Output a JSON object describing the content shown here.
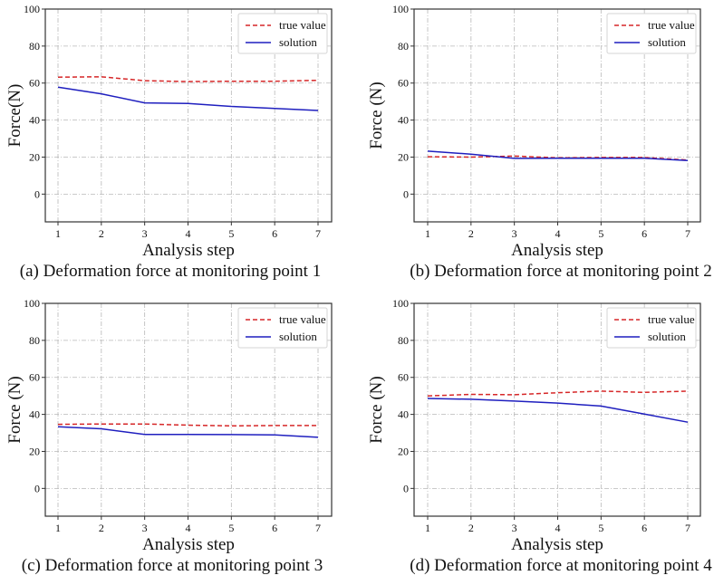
{
  "colors": {
    "true_value": "#d62728",
    "solution": "#1f1fbf"
  },
  "chart_data": [
    {
      "type": "line",
      "id": "a",
      "caption": "(a) Deformation force at monitoring point 1",
      "xlabel": "Analysis step",
      "ylabel": "Force(N)",
      "x": [
        1,
        2,
        3,
        4,
        5,
        6,
        7
      ],
      "xticks": [
        "1",
        "2",
        "3",
        "4",
        "5",
        "6",
        "7"
      ],
      "yticks": [
        "0",
        "20",
        "40",
        "60",
        "80",
        "100"
      ],
      "ylim": [
        -15,
        100
      ],
      "grid": true,
      "legend": "top-right",
      "series": [
        {
          "name": "true value",
          "style": "dashed",
          "values": [
            63.2,
            63.4,
            61.3,
            60.8,
            61.0,
            61.0,
            61.5
          ]
        },
        {
          "name": "solution",
          "style": "solid",
          "values": [
            57.8,
            54.2,
            49.3,
            49.0,
            47.4,
            46.3,
            45.2
          ]
        }
      ]
    },
    {
      "type": "line",
      "id": "b",
      "caption": "(b) Deformation force at monitoring point 2",
      "xlabel": "Analysis step",
      "ylabel": "Force (N)",
      "x": [
        1,
        2,
        3,
        4,
        5,
        6,
        7
      ],
      "xticks": [
        "1",
        "2",
        "3",
        "4",
        "5",
        "6",
        "7"
      ],
      "yticks": [
        "0",
        "20",
        "40",
        "60",
        "80",
        "100"
      ],
      "ylim": [
        -15,
        100
      ],
      "grid": true,
      "legend": "top-right",
      "series": [
        {
          "name": "true value",
          "style": "dashed",
          "values": [
            20.2,
            20.0,
            20.6,
            19.6,
            19.8,
            19.8,
            18.4
          ]
        },
        {
          "name": "solution",
          "style": "solid",
          "values": [
            23.2,
            21.6,
            19.3,
            19.4,
            19.4,
            19.4,
            18.2
          ]
        }
      ]
    },
    {
      "type": "line",
      "id": "c",
      "caption": "(c) Deformation force at monitoring point 3",
      "xlabel": "Analysis step",
      "ylabel": "Force (N)",
      "x": [
        1,
        2,
        3,
        4,
        5,
        6,
        7
      ],
      "xticks": [
        "1",
        "2",
        "3",
        "4",
        "5",
        "6",
        "7"
      ],
      "yticks": [
        "0",
        "20",
        "40",
        "60",
        "80",
        "100"
      ],
      "ylim": [
        -15,
        100
      ],
      "grid": true,
      "legend": "top-right",
      "series": [
        {
          "name": "true value",
          "style": "dashed",
          "values": [
            34.6,
            34.8,
            34.8,
            34.2,
            33.8,
            34.0,
            34.0
          ]
        },
        {
          "name": "solution",
          "style": "solid",
          "values": [
            33.3,
            32.2,
            29.2,
            29.2,
            29.1,
            28.9,
            27.6
          ]
        }
      ]
    },
    {
      "type": "line",
      "id": "d",
      "caption": "(d) Deformation force at monitoring point 4",
      "xlabel": "Analysis step",
      "ylabel": "Force (N)",
      "x": [
        1,
        2,
        3,
        4,
        5,
        6,
        7
      ],
      "xticks": [
        "1",
        "2",
        "3",
        "4",
        "5",
        "6",
        "7"
      ],
      "yticks": [
        "0",
        "20",
        "40",
        "60",
        "80",
        "100"
      ],
      "ylim": [
        -15,
        100
      ],
      "grid": true,
      "legend": "top-right",
      "series": [
        {
          "name": "true value",
          "style": "dashed",
          "values": [
            50.0,
            50.8,
            50.6,
            51.7,
            52.6,
            51.9,
            52.6
          ]
        },
        {
          "name": "solution",
          "style": "solid",
          "values": [
            48.6,
            48.2,
            47.2,
            46.1,
            44.5,
            40.2,
            35.8
          ]
        }
      ]
    }
  ]
}
